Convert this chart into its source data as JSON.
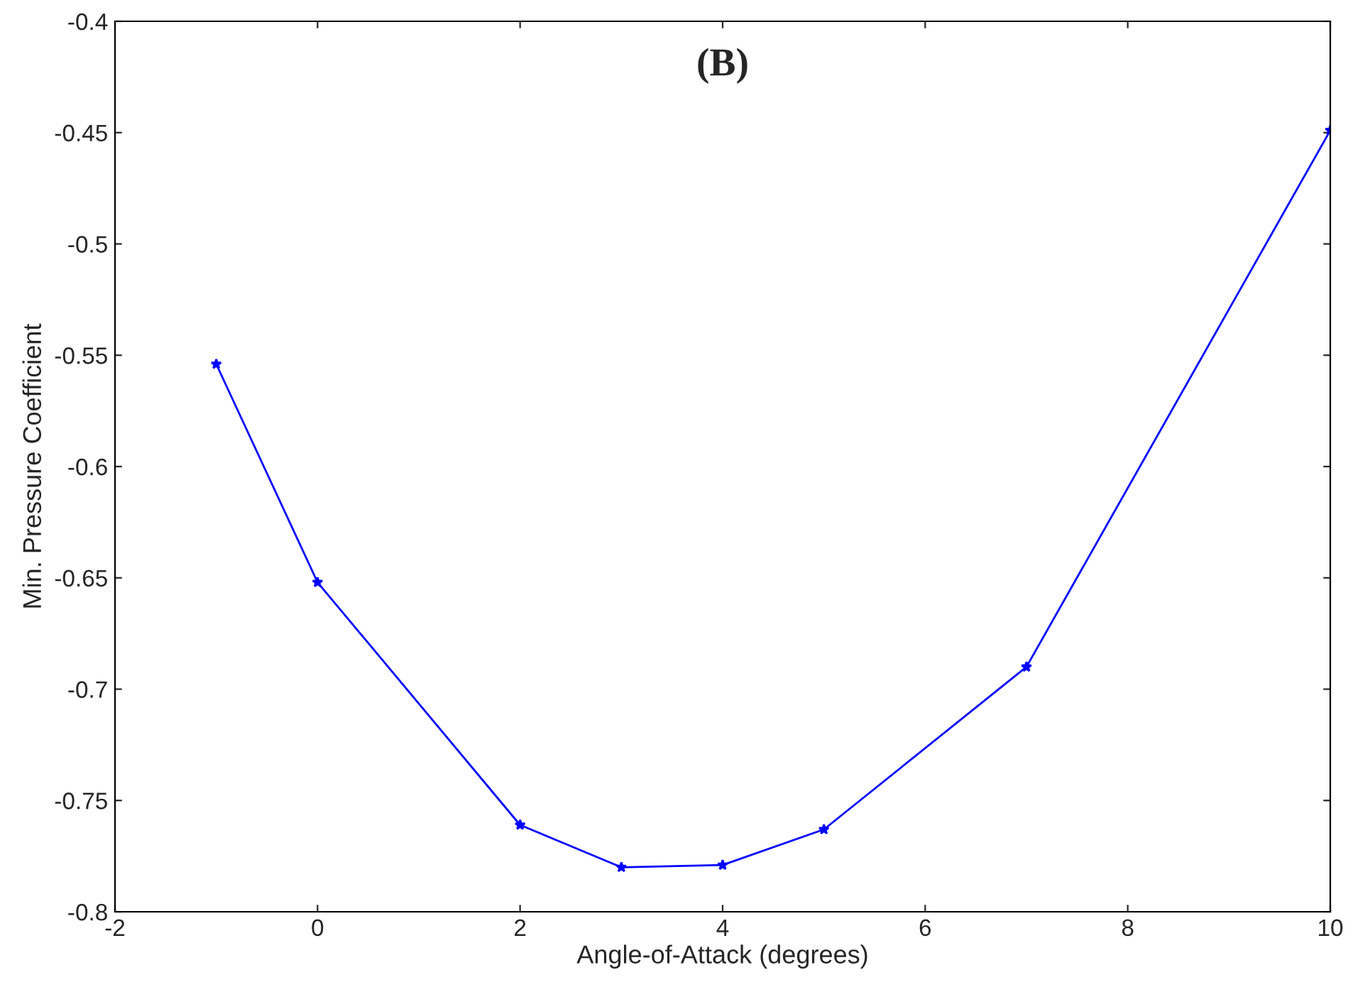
{
  "chart_data": {
    "type": "line",
    "xlabel": "Angle-of-Attack (degrees)",
    "ylabel": "Min. Pressure Coefficient",
    "annotations": [
      "(B)"
    ],
    "x": [
      -1,
      0,
      2,
      3,
      4,
      5,
      7,
      10
    ],
    "series": [
      {
        "color": "#0000ff",
        "values": [
          -0.554,
          -0.652,
          -0.761,
          -0.78,
          -0.779,
          -0.763,
          -0.69,
          -0.449
        ]
      }
    ],
    "xlim": [
      -2,
      10
    ],
    "xticks": [
      -2,
      0,
      2,
      4,
      6,
      8,
      10
    ],
    "ylim": [
      -0.8,
      -0.4
    ],
    "yticks": [
      -0.8,
      -0.75,
      -0.7,
      -0.65,
      -0.6,
      -0.55,
      -0.5,
      -0.45,
      -0.4
    ],
    "grid": false,
    "legend": false,
    "marker": "star",
    "line_style": "solid"
  }
}
